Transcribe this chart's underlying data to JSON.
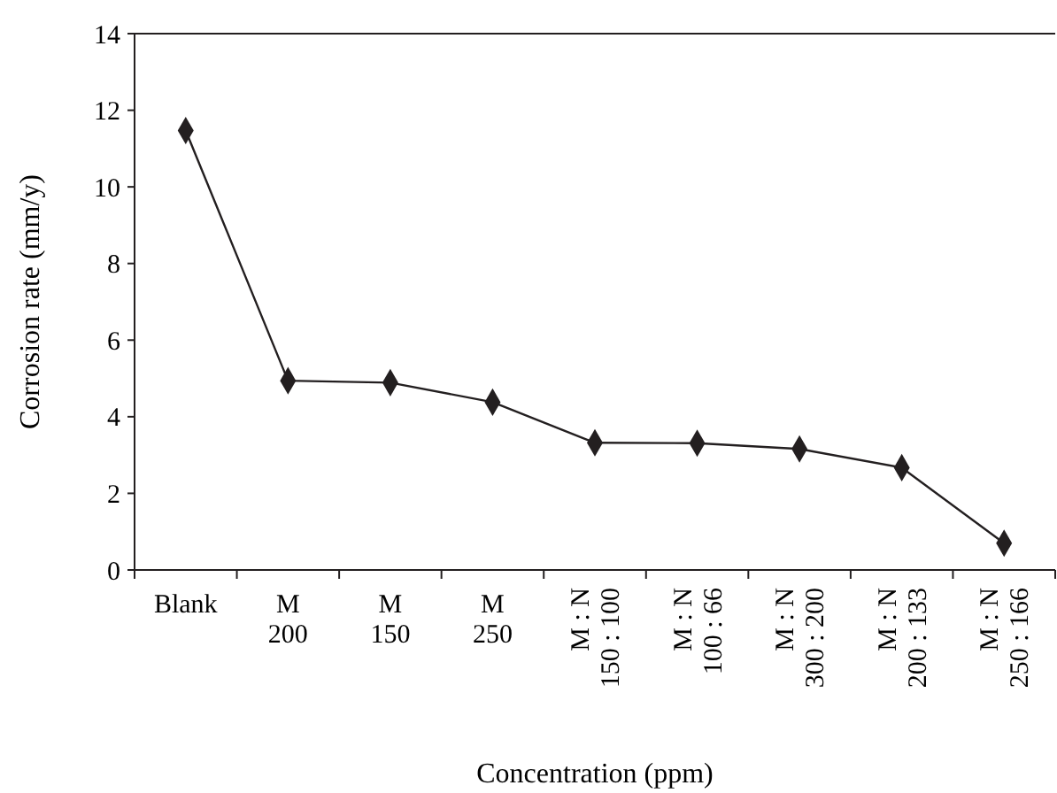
{
  "chart_data": {
    "type": "line",
    "xlabel": "Concentration (ppm)",
    "ylabel": "Corrosion rate (mm/y)",
    "categories": [
      "Blank",
      "M\n200",
      "M\n150",
      "M\n250",
      "M : N\n150 : 100",
      "M : N\n100 : 66",
      "M : N\n300 : 200",
      "M : N\n200 : 133",
      "M : N\n250 : 166"
    ],
    "series": [
      {
        "color": "#231f20",
        "values": [
          11.47,
          4.94,
          4.89,
          4.38,
          3.32,
          3.31,
          3.16,
          2.67,
          0.7
        ]
      }
    ],
    "ylim": [
      0,
      14
    ],
    "yticks": [
      0,
      2,
      4,
      6,
      8,
      10,
      12,
      14
    ],
    "marker": "diamond",
    "line_style": "solid",
    "grid": false
  }
}
